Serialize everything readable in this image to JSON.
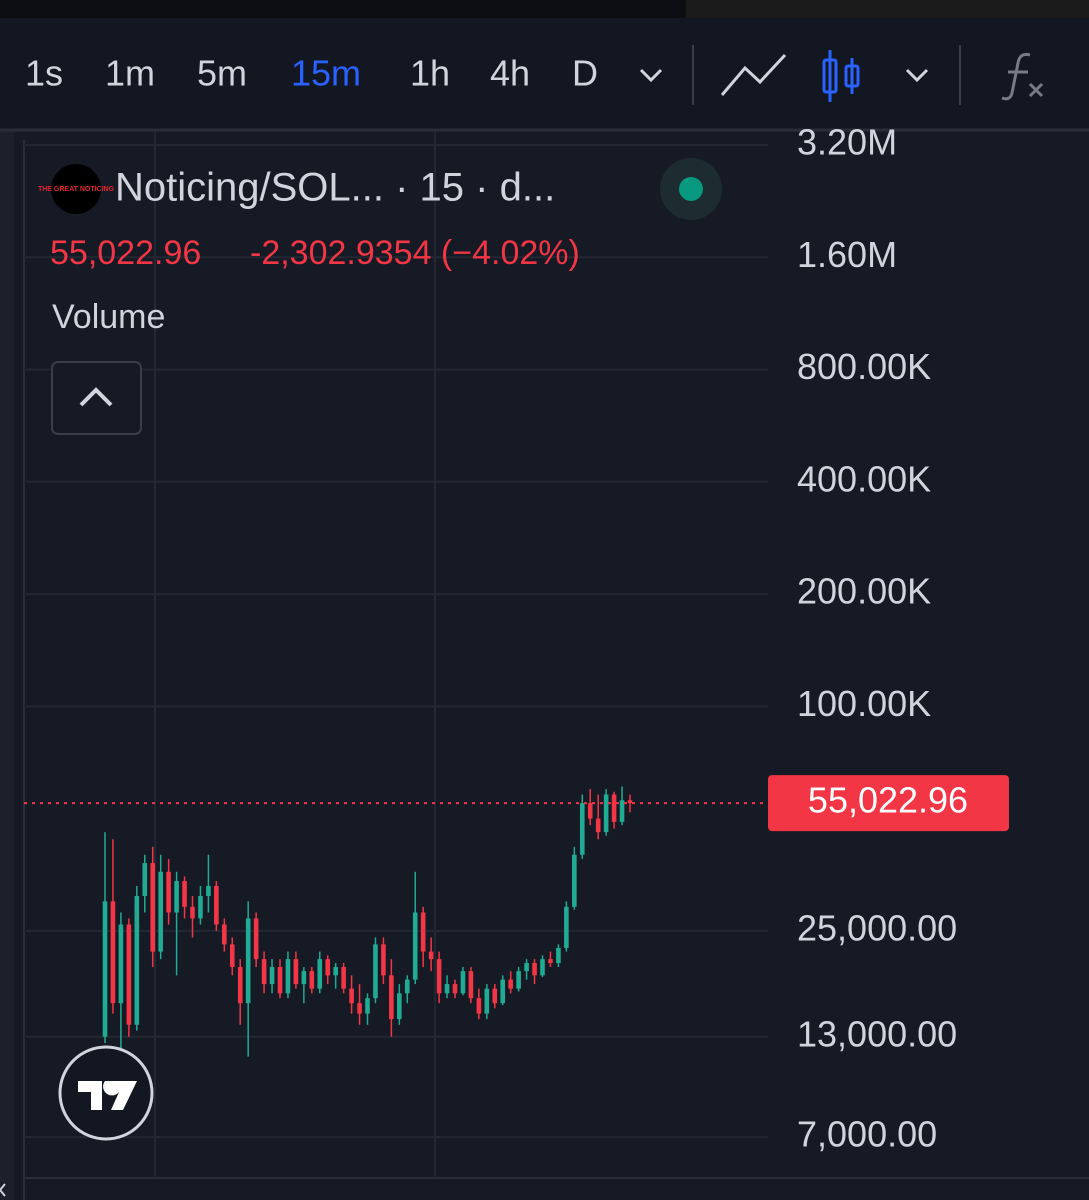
{
  "toolbar": {
    "intervals": [
      "1s",
      "1m",
      "5m",
      "15m",
      "1h",
      "4h",
      "D"
    ],
    "active_interval": "15m"
  },
  "legend": {
    "logo_text": "THE GREAT NOTICING",
    "symbol": "Noticing/SOL... · 15 · d...",
    "price": "55,022.96",
    "change": "-2,302.9354 (−4.02%)",
    "study": "Volume"
  },
  "chart_data": {
    "type": "candlestick",
    "log_scale": true,
    "grid": true,
    "up_color": "#22ab94",
    "down_color": "#f23645",
    "ylim": [
      5370,
      3510000
    ],
    "yticks": [
      {
        "value": 3200000,
        "label": "3.20M"
      },
      {
        "value": 1600000,
        "label": "1.60M"
      },
      {
        "value": 800000,
        "label": "800.00K"
      },
      {
        "value": 400000,
        "label": "400.00K"
      },
      {
        "value": 200000,
        "label": "200.00K"
      },
      {
        "value": 100000,
        "label": "100.00K"
      },
      {
        "value": 25000,
        "label": "25,000.00"
      },
      {
        "value": 13000,
        "label": "13,000.00"
      },
      {
        "value": 7000,
        "label": "7,000.00"
      }
    ],
    "last_price": {
      "value": 55022.96,
      "label": "55,022.96"
    },
    "open": [
      13000,
      30000,
      16000,
      26000,
      14000,
      31000,
      38000,
      22000,
      36000,
      28000,
      34000,
      29000,
      27000,
      31000,
      33000,
      26000,
      23000,
      20000,
      16000,
      27000,
      21000,
      18000,
      20000,
      17000,
      21000,
      18000,
      19500,
      17500,
      21000,
      19000,
      20000,
      17500,
      16000,
      15000,
      16500,
      23000,
      19000,
      14500,
      17000,
      18500,
      28000,
      22000,
      21000,
      17000,
      18000,
      17000,
      19500,
      16500,
      15000,
      17500,
      16000,
      18500,
      17500,
      19500,
      20500,
      19000,
      21000,
      20500,
      22500,
      29000,
      40000,
      55000,
      50000,
      46000,
      58000,
      49000,
      56000
    ],
    "high": [
      46000,
      44000,
      28000,
      27000,
      33000,
      40000,
      42000,
      40000,
      39000,
      36000,
      35000,
      31000,
      33000,
      40000,
      34000,
      27000,
      24000,
      21000,
      30000,
      28000,
      22000,
      21000,
      21000,
      22000,
      22000,
      20000,
      20000,
      22000,
      21500,
      20500,
      20500,
      19000,
      18000,
      17000,
      24000,
      24000,
      21000,
      18000,
      19000,
      36000,
      29000,
      24000,
      22000,
      19000,
      18500,
      20000,
      20000,
      17500,
      18000,
      18000,
      19000,
      19500,
      20000,
      21000,
      21000,
      21500,
      22000,
      23000,
      30000,
      42000,
      58000,
      60000,
      58000,
      60000,
      59000,
      61000,
      58000
    ],
    "low": [
      12500,
      15000,
      12000,
      13000,
      13500,
      28000,
      20000,
      21000,
      26000,
      19000,
      27000,
      24000,
      26000,
      28000,
      25000,
      22000,
      19000,
      14000,
      11500,
      20000,
      17000,
      17000,
      16500,
      16500,
      17500,
      16000,
      17000,
      17000,
      18000,
      17500,
      17000,
      15000,
      14000,
      14000,
      16000,
      18000,
      13000,
      14000,
      16000,
      18000,
      20000,
      19500,
      16000,
      16500,
      16500,
      16800,
      16000,
      14500,
      14500,
      15500,
      15800,
      17000,
      17200,
      18500,
      18000,
      18800,
      20000,
      20000,
      22000,
      28500,
      39000,
      48000,
      44000,
      45000,
      47000,
      48000,
      52000
    ],
    "close": [
      30000,
      16000,
      26000,
      14000,
      31000,
      38000,
      22000,
      36000,
      28000,
      34000,
      29000,
      27000,
      31000,
      33000,
      26000,
      23000,
      20000,
      16000,
      27000,
      21000,
      18000,
      20000,
      17000,
      21000,
      18000,
      19500,
      17500,
      21000,
      19000,
      20000,
      17500,
      16000,
      15000,
      16500,
      23000,
      19000,
      14500,
      17000,
      18500,
      28000,
      22000,
      21000,
      17000,
      18000,
      17000,
      19500,
      16500,
      15000,
      17500,
      16000,
      18500,
      17500,
      19500,
      20500,
      19000,
      21000,
      20500,
      22500,
      29000,
      40000,
      55000,
      50000,
      46000,
      58000,
      49000,
      56000,
      55022.96
    ]
  }
}
